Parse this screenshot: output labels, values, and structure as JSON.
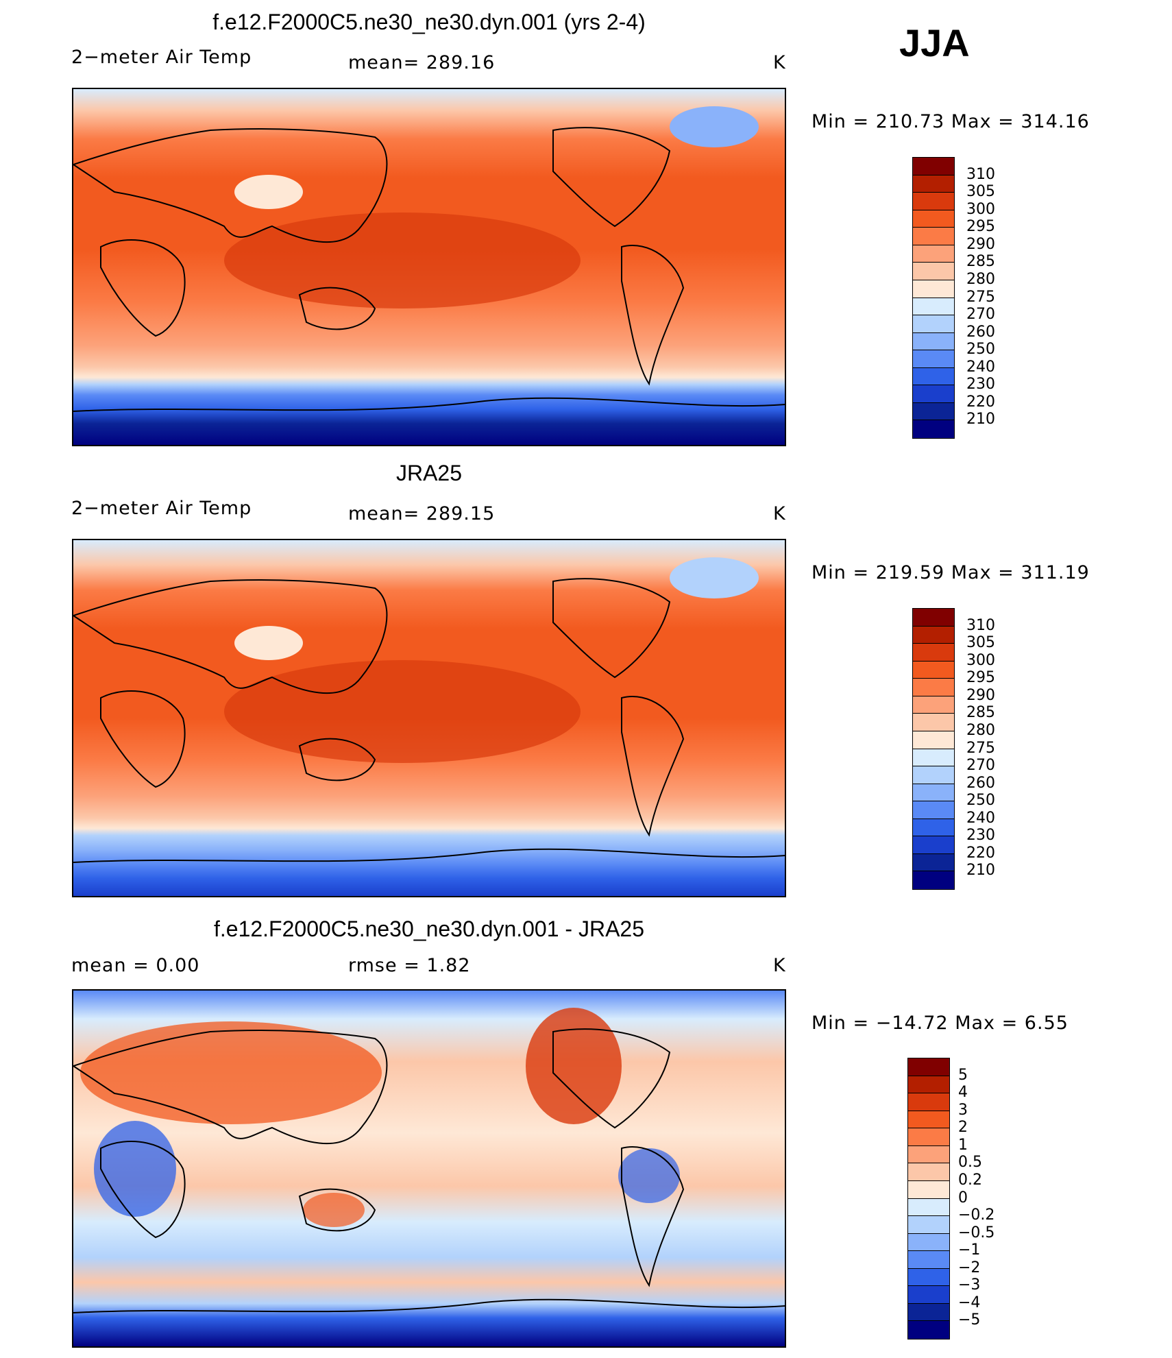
{
  "season": "JJA",
  "units_glyph": "K",
  "panels": [
    {
      "id": "model",
      "title": "f.e12.F2000C5.ne30_ne30.dyn.001 (yrs 2-4)",
      "left_label": "2−meter Air Temp",
      "center_label": "mean=  289.16",
      "units": "K",
      "minmax": "Min  =  210.73  Max  =  314.16",
      "colorbar_labels": [
        "310",
        "305",
        "300",
        "295",
        "290",
        "285",
        "280",
        "275",
        "270",
        "260",
        "250",
        "240",
        "230",
        "220",
        "210"
      ],
      "colorbar_colors": [
        "#800000",
        "#b31f00",
        "#d93a0d",
        "#f25a1f",
        "#fb7b46",
        "#fca27a",
        "#fcc7a9",
        "#fee8d6",
        "#d8ecfd",
        "#b2d2fc",
        "#8ab2fa",
        "#5a8af5",
        "#2f62e8",
        "#1a3fcc",
        "#0b2496",
        "#000080"
      ]
    },
    {
      "id": "obs",
      "title": "JRA25",
      "left_label": "2−meter Air Temp",
      "center_label": "mean=  289.15",
      "units": "K",
      "minmax": "Min  =  219.59  Max  =  311.19",
      "colorbar_labels": [
        "310",
        "305",
        "300",
        "295",
        "290",
        "285",
        "280",
        "275",
        "270",
        "260",
        "250",
        "240",
        "230",
        "220",
        "210"
      ],
      "colorbar_colors": [
        "#800000",
        "#b31f00",
        "#d93a0d",
        "#f25a1f",
        "#fb7b46",
        "#fca27a",
        "#fcc7a9",
        "#fee8d6",
        "#d8ecfd",
        "#b2d2fc",
        "#8ab2fa",
        "#5a8af5",
        "#2f62e8",
        "#1a3fcc",
        "#0b2496",
        "#000080"
      ]
    },
    {
      "id": "diff",
      "title": "f.e12.F2000C5.ne30_ne30.dyn.001 - JRA25",
      "left_label": "mean  =     0.00",
      "center_label": "rmse  =     1.82",
      "units": "K",
      "minmax": "Min  =  −14.72  Max  =     6.55",
      "colorbar_labels": [
        "5",
        "4",
        "3",
        "2",
        "1",
        "0.5",
        "0.2",
        "0",
        "−0.2",
        "−0.5",
        "−1",
        "−2",
        "−3",
        "−4",
        "−5"
      ],
      "colorbar_colors": [
        "#800000",
        "#b31f00",
        "#d93a0d",
        "#f25a1f",
        "#fb7b46",
        "#fca27a",
        "#fcc7a9",
        "#fee8d6",
        "#d8ecfd",
        "#b2d2fc",
        "#8ab2fa",
        "#5a8af5",
        "#2f62e8",
        "#1a3fcc",
        "#0b2496",
        "#000080"
      ]
    }
  ]
}
